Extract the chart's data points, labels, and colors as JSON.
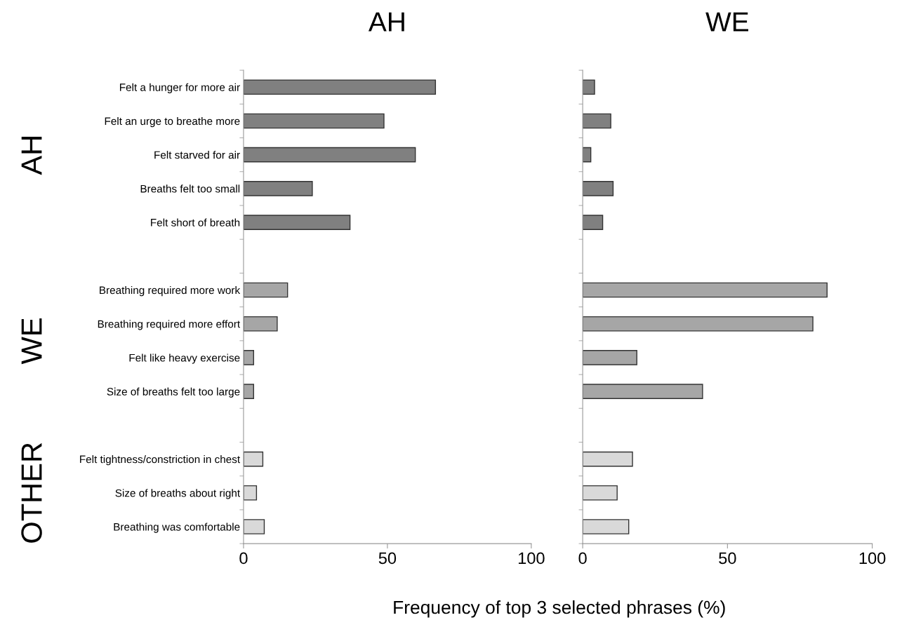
{
  "chart_data": [
    {
      "type": "bar",
      "orientation": "horizontal",
      "title": "AH",
      "categories": [
        "Felt a hunger for more air",
        "Felt an urge to breathe more",
        "Felt starved for air",
        "Breaths felt too small",
        "Felt short of breath",
        null,
        "Breathing required more work",
        "Breathing required more effort",
        "Felt like heavy exercise",
        "Size of breaths felt too large",
        null,
        "Felt tightness/constriction in chest",
        "Size of breaths about right",
        "Breathing was comfortable"
      ],
      "values": [
        66.7,
        48.8,
        59.7,
        23.9,
        37,
        null,
        15.3,
        11.7,
        3.5,
        3.5,
        null,
        6.7,
        4.5,
        7.2
      ],
      "colors": [
        "#808080",
        "#808080",
        "#808080",
        "#808080",
        "#808080",
        null,
        "#a6a6a6",
        "#a6a6a6",
        "#a6a6a6",
        "#a6a6a6",
        null,
        "#d9d9d9",
        "#d9d9d9",
        "#d9d9d9"
      ],
      "xlim": [
        0,
        100
      ],
      "xticks": [
        0,
        50,
        100
      ],
      "annotations": [
        "AH",
        "WE",
        "OTHER"
      ]
    },
    {
      "type": "bar",
      "orientation": "horizontal",
      "title": "WE",
      "categories": [
        null,
        null,
        null,
        null,
        null,
        null,
        null,
        null,
        null,
        null,
        null,
        null,
        null,
        null
      ],
      "values": [
        4.1,
        9.7,
        2.8,
        10.5,
        6.9,
        null,
        84.4,
        79.5,
        18.7,
        41.4,
        null,
        17.2,
        11.9,
        15.9
      ],
      "colors": [
        "#808080",
        "#808080",
        "#808080",
        "#808080",
        "#808080",
        null,
        "#a6a6a6",
        "#a6a6a6",
        "#a6a6a6",
        "#a6a6a6",
        null,
        "#d9d9d9",
        "#d9d9d9",
        "#d9d9d9"
      ],
      "xlim": [
        0,
        100
      ],
      "xticks": [
        0,
        50,
        100
      ],
      "tick_labels": "x",
      "xlabel": "Frequency of top 3 selected phrases (%)"
    }
  ]
}
